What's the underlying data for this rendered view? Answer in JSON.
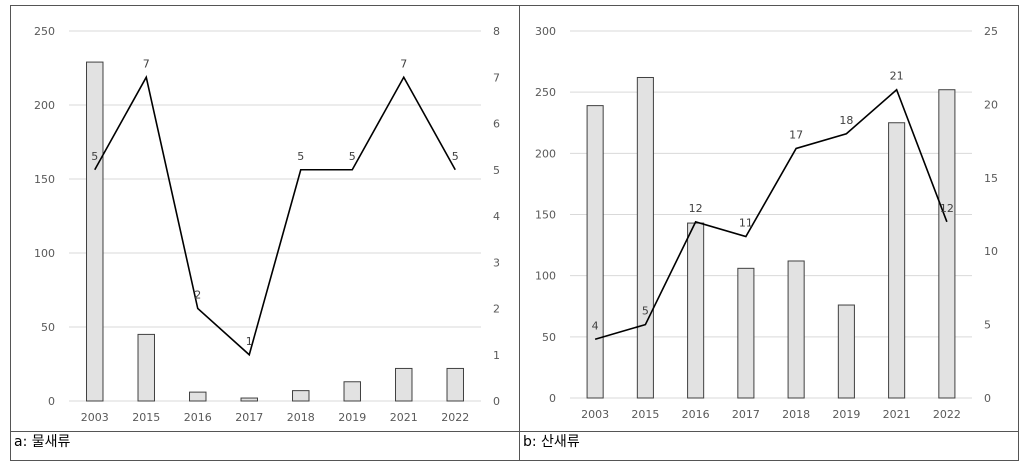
{
  "chart_data": [
    {
      "type": "bar+line",
      "caption": "a: 물새류",
      "categories": [
        "2003",
        "2015",
        "2016",
        "2017",
        "2018",
        "2019",
        "2021",
        "2022"
      ],
      "bar_series": {
        "axis": "left",
        "values": [
          229,
          45,
          6,
          2,
          7,
          13,
          22,
          22
        ]
      },
      "line_series": {
        "axis": "right",
        "values": [
          5,
          7,
          2,
          1,
          5,
          5,
          7,
          5
        ],
        "labels": [
          "5",
          "7",
          "2",
          "1",
          "5",
          "5",
          "7",
          "5"
        ]
      },
      "y_left": {
        "min": 0,
        "max": 250,
        "ticks": [
          "0",
          "50",
          "100",
          "150",
          "200",
          "250"
        ]
      },
      "y_right": {
        "min": 0,
        "max": 8,
        "ticks": [
          "0",
          "1",
          "2",
          "3",
          "4",
          "5",
          "6",
          "7",
          "8"
        ]
      },
      "grid": true,
      "colors": {
        "bar_fill": "#e2e2e2",
        "bar_edge": "#404040",
        "line": "#000000"
      }
    },
    {
      "type": "bar+line",
      "caption": "b: 산새류",
      "categories": [
        "2003",
        "2015",
        "2016",
        "2017",
        "2018",
        "2019",
        "2021",
        "2022"
      ],
      "bar_series": {
        "axis": "left",
        "values": [
          239,
          262,
          143,
          106,
          112,
          76,
          225,
          252
        ]
      },
      "line_series": {
        "axis": "right",
        "values": [
          4,
          5,
          12,
          11,
          17,
          18,
          21,
          12
        ],
        "labels": [
          "4",
          "5",
          "12",
          "11",
          "17",
          "18",
          "21",
          "12"
        ]
      },
      "y_left": {
        "min": 0,
        "max": 300,
        "ticks": [
          "0",
          "50",
          "100",
          "150",
          "200",
          "250",
          "300"
        ]
      },
      "y_right": {
        "min": 0,
        "max": 25,
        "ticks": [
          "0",
          "5",
          "10",
          "15",
          "20",
          "25"
        ]
      },
      "grid": true,
      "colors": {
        "bar_fill": "#e2e2e2",
        "bar_edge": "#404040",
        "line": "#000000"
      }
    }
  ]
}
